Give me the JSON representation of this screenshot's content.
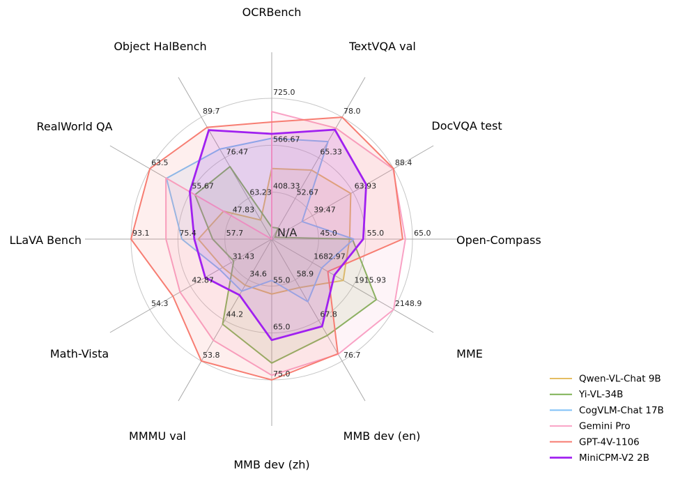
{
  "chart_data": {
    "type": "radar",
    "title": "",
    "center_label": "N/A",
    "grid": true,
    "rings": 3,
    "fill_opacity": 0.12,
    "legend_position": "lower right",
    "axes": [
      {
        "label": "OCRBench",
        "min": 250,
        "max": 725,
        "ticks": [
          "408.33",
          "566.67",
          "725.0"
        ]
      },
      {
        "label": "TextVQA val",
        "min": 40,
        "max": 78,
        "ticks": [
          "52.67",
          "65.33",
          "78.0"
        ]
      },
      {
        "label": "DocVQA test",
        "min": 15,
        "max": 88.4,
        "ticks": [
          "39.47",
          "63.93",
          "88.4"
        ]
      },
      {
        "label": "Open-Compass",
        "min": 35,
        "max": 65,
        "ticks": [
          "45.0",
          "55.0",
          "65.0"
        ]
      },
      {
        "label": "MME",
        "min": 1450,
        "max": 2148.9,
        "ticks": [
          "1682.97",
          "1915.93",
          "2148.9"
        ]
      },
      {
        "label": "MMB dev (en)",
        "min": 50,
        "max": 76.7,
        "ticks": [
          "58.9",
          "67.8",
          "76.7"
        ]
      },
      {
        "label": "MMB dev (zh)",
        "min": 45,
        "max": 75,
        "ticks": [
          "55.0",
          "65.0",
          "75.0"
        ]
      },
      {
        "label": "MMMU val",
        "min": 25,
        "max": 53.8,
        "ticks": [
          "34.6",
          "44.2",
          "53.8"
        ]
      },
      {
        "label": "Math-Vista",
        "min": 20,
        "max": 54.3,
        "ticks": [
          "31.43",
          "42.87",
          "54.3"
        ]
      },
      {
        "label": "LLaVA Bench",
        "min": 40,
        "max": 93.1,
        "ticks": [
          "57.7",
          "75.4",
          "93.1"
        ]
      },
      {
        "label": "RealWorld QA",
        "min": 40,
        "max": 63.5,
        "ticks": [
          "47.83",
          "55.67",
          "63.5"
        ]
      },
      {
        "label": "Object HalBench",
        "min": 50,
        "max": 89.7,
        "ticks": [
          "63.23",
          "76.47",
          "89.7"
        ]
      }
    ],
    "series": [
      {
        "name": "Qwen-VL-Chat 9B",
        "color": "#e5bd62",
        "line_width": 2,
        "values": [
          488,
          61.5,
          62.6,
          51.6,
          1860.0,
          60.6,
          56.7,
          35.9,
          33.8,
          67.7,
          49.3,
          56.2
        ]
      },
      {
        "name": "Yi-VL-34B",
        "color": "#7eb254",
        "line_width": 2,
        "values": [
          290,
          43.4,
          16.9,
          52.2,
          2050.2,
          71.1,
          71.4,
          45.1,
          30.7,
          62.3,
          54.8,
          73.6
        ]
      },
      {
        "name": "CogVLM-Chat 17B",
        "color": "#7fc0f7",
        "line_width": 2,
        "values": [
          590,
          70.4,
          33.3,
          52.5,
          1736.6,
          63.7,
          53.8,
          37.3,
          34.7,
          73.9,
          60.3,
          79.3
        ]
      },
      {
        "name": "Gemini Pro",
        "color": "#f9a2c5",
        "line_width": 2,
        "values": [
          680,
          74.6,
          88.1,
          63.5,
          2148.9,
          75.2,
          74.0,
          48.9,
          45.8,
          79.9,
          60.4,
          null
        ]
      },
      {
        "name": "GPT-4V-1106",
        "color": "#f77d72",
        "line_width": 2,
        "values": [
          645,
          78.0,
          88.4,
          62.9,
          1771.5,
          75.1,
          75.0,
          53.8,
          47.8,
          93.1,
          63.5,
          86.4
        ]
      },
      {
        "name": "MiniCPM-V2 2B",
        "color": "#a020f0",
        "line_width": 2.8,
        "values": [
          605,
          74.1,
          71.9,
          54.5,
          1808.6,
          69.1,
          66.5,
          38.2,
          38.7,
          69.2,
          55.8,
          85.5
        ]
      }
    ]
  }
}
